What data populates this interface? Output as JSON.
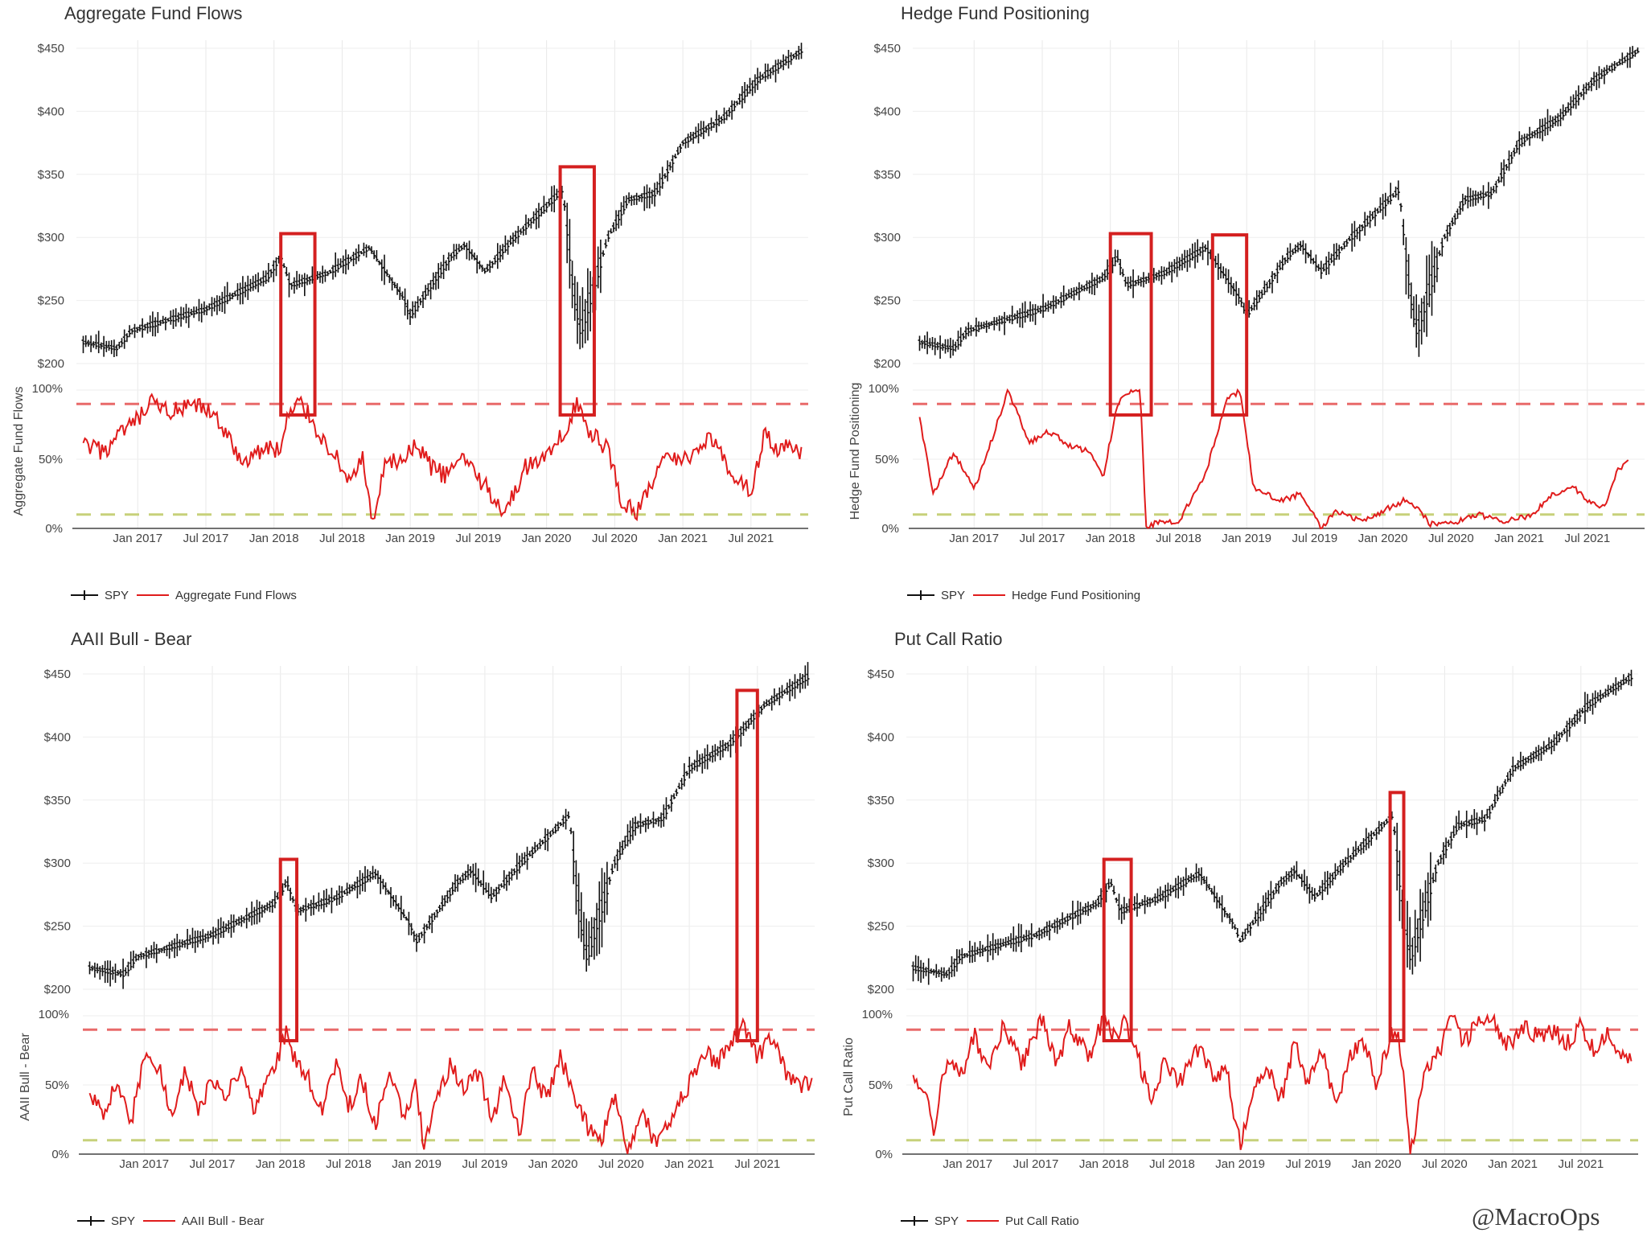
{
  "watermark": "@MacroOps",
  "chart_data": [
    {
      "type": "line",
      "title": "Aggregate Fund Flows",
      "price_series_name": "SPY",
      "indicator_series_name": "Aggregate Fund Flows",
      "indicator_ylabel": "Aggregate Fund Flows",
      "x_ticks": [
        "Jan 2017",
        "Jul 2017",
        "Jan 2018",
        "Jul 2018",
        "Jan 2019",
        "Jul 2019",
        "Jan 2020",
        "Jul 2020",
        "Jan 2021",
        "Jul 2021"
      ],
      "price_yticks": [
        "$200",
        "$250",
        "$300",
        "$350",
        "$400",
        "$450"
      ],
      "price_ylim": [
        200,
        450
      ],
      "indicator_yticks": [
        "0%",
        "50%",
        "100%"
      ],
      "indicator_ylim": [
        0,
        100
      ],
      "upper_threshold": 90,
      "lower_threshold": 10,
      "indicator_points": [
        [
          2016.6,
          60
        ],
        [
          2016.75,
          55
        ],
        [
          2016.9,
          70
        ],
        [
          2017.0,
          78
        ],
        [
          2017.1,
          90
        ],
        [
          2017.25,
          84
        ],
        [
          2017.45,
          88
        ],
        [
          2017.6,
          78
        ],
        [
          2017.75,
          48
        ],
        [
          2017.95,
          58
        ],
        [
          2018.05,
          57
        ],
        [
          2018.1,
          80
        ],
        [
          2018.2,
          92
        ],
        [
          2018.32,
          70
        ],
        [
          2018.45,
          52
        ],
        [
          2018.55,
          35
        ],
        [
          2018.65,
          50
        ],
        [
          2018.72,
          2
        ],
        [
          2018.82,
          46
        ],
        [
          2018.95,
          50
        ],
        [
          2019.05,
          60
        ],
        [
          2019.15,
          45
        ],
        [
          2019.25,
          38
        ],
        [
          2019.4,
          52
        ],
        [
          2019.55,
          30
        ],
        [
          2019.7,
          12
        ],
        [
          2019.85,
          45
        ],
        [
          2020.05,
          55
        ],
        [
          2020.15,
          75
        ],
        [
          2020.22,
          92
        ],
        [
          2020.3,
          70
        ],
        [
          2020.45,
          58
        ],
        [
          2020.55,
          20
        ],
        [
          2020.65,
          10
        ],
        [
          2020.85,
          48
        ],
        [
          2021.05,
          52
        ],
        [
          2021.2,
          68
        ],
        [
          2021.35,
          40
        ],
        [
          2021.5,
          28
        ],
        [
          2021.6,
          68
        ],
        [
          2021.7,
          55
        ],
        [
          2021.8,
          60
        ],
        [
          2021.87,
          52
        ]
      ],
      "highlights": [
        [
          2018.05,
          2018.3
        ],
        [
          2020.1,
          2020.35
        ]
      ]
    },
    {
      "type": "line",
      "title": "Hedge Fund Positioning",
      "price_series_name": "SPY",
      "indicator_series_name": "Hedge Fund Positioning",
      "indicator_ylabel": "Hedge Fund Positioning",
      "x_ticks": [
        "Jan 2017",
        "Jul 2017",
        "Jan 2018",
        "Jul 2018",
        "Jan 2019",
        "Jul 2019",
        "Jan 2020",
        "Jul 2020",
        "Jan 2021",
        "Jul 2021"
      ],
      "price_yticks": [
        "$200",
        "$250",
        "$300",
        "$350",
        "$400",
        "$450"
      ],
      "price_ylim": [
        200,
        450
      ],
      "indicator_yticks": [
        "0%",
        "50%",
        "100%"
      ],
      "indicator_ylim": [
        0,
        100
      ],
      "upper_threshold": 90,
      "lower_threshold": 10,
      "indicator_points": [
        [
          2016.6,
          80
        ],
        [
          2016.7,
          25
        ],
        [
          2016.85,
          55
        ],
        [
          2017.0,
          28
        ],
        [
          2017.1,
          55
        ],
        [
          2017.25,
          100
        ],
        [
          2017.4,
          62
        ],
        [
          2017.55,
          70
        ],
        [
          2017.7,
          60
        ],
        [
          2017.85,
          55
        ],
        [
          2017.95,
          38
        ],
        [
          2018.05,
          90
        ],
        [
          2018.15,
          100
        ],
        [
          2018.22,
          100
        ],
        [
          2018.26,
          0
        ],
        [
          2018.35,
          5
        ],
        [
          2018.5,
          5
        ],
        [
          2018.7,
          40
        ],
        [
          2018.85,
          92
        ],
        [
          2018.95,
          100
        ],
        [
          2019.05,
          30
        ],
        [
          2019.25,
          20
        ],
        [
          2019.4,
          25
        ],
        [
          2019.55,
          0
        ],
        [
          2019.65,
          12
        ],
        [
          2019.85,
          5
        ],
        [
          2020.15,
          20
        ],
        [
          2020.25,
          15
        ],
        [
          2020.35,
          3
        ],
        [
          2020.55,
          5
        ],
        [
          2020.7,
          10
        ],
        [
          2020.9,
          5
        ],
        [
          2021.1,
          10
        ],
        [
          2021.25,
          25
        ],
        [
          2021.4,
          30
        ],
        [
          2021.5,
          20
        ],
        [
          2021.62,
          15
        ],
        [
          2021.72,
          42
        ],
        [
          2021.8,
          48
        ]
      ],
      "highlights": [
        [
          2018.0,
          2018.3
        ],
        [
          2018.75,
          2019.0
        ]
      ]
    },
    {
      "type": "line",
      "title": "AAII Bull - Bear",
      "price_series_name": "SPY",
      "indicator_series_name": "AAII Bull - Bear",
      "indicator_ylabel": "AAII Bull - Bear",
      "x_ticks": [
        "Jan 2017",
        "Jul 2017",
        "Jan 2018",
        "Jul 2018",
        "Jan 2019",
        "Jul 2019",
        "Jan 2020",
        "Jul 2020",
        "Jan 2021",
        "Jul 2021"
      ],
      "price_yticks": [
        "$200",
        "$250",
        "$300",
        "$350",
        "$400",
        "$450"
      ],
      "price_ylim": [
        200,
        450
      ],
      "indicator_yticks": [
        "0%",
        "50%",
        "100%"
      ],
      "indicator_ylim": [
        0,
        100
      ],
      "upper_threshold": 90,
      "lower_threshold": 10,
      "indicator_points": [
        [
          2016.6,
          42
        ],
        [
          2016.7,
          28
        ],
        [
          2016.8,
          55
        ],
        [
          2016.9,
          22
        ],
        [
          2017.0,
          70
        ],
        [
          2017.1,
          65
        ],
        [
          2017.2,
          28
        ],
        [
          2017.3,
          60
        ],
        [
          2017.4,
          30
        ],
        [
          2017.5,
          55
        ],
        [
          2017.6,
          40
        ],
        [
          2017.7,
          62
        ],
        [
          2017.8,
          32
        ],
        [
          2017.9,
          55
        ],
        [
          2018.0,
          75
        ],
        [
          2018.05,
          90
        ],
        [
          2018.1,
          70
        ],
        [
          2018.2,
          55
        ],
        [
          2018.3,
          30
        ],
        [
          2018.4,
          65
        ],
        [
          2018.5,
          35
        ],
        [
          2018.6,
          55
        ],
        [
          2018.7,
          20
        ],
        [
          2018.8,
          60
        ],
        [
          2018.9,
          30
        ],
        [
          2019.0,
          50
        ],
        [
          2019.05,
          5
        ],
        [
          2019.15,
          40
        ],
        [
          2019.25,
          65
        ],
        [
          2019.35,
          45
        ],
        [
          2019.45,
          60
        ],
        [
          2019.55,
          25
        ],
        [
          2019.65,
          55
        ],
        [
          2019.75,
          15
        ],
        [
          2019.85,
          60
        ],
        [
          2019.95,
          40
        ],
        [
          2020.05,
          70
        ],
        [
          2020.15,
          45
        ],
        [
          2020.25,
          20
        ],
        [
          2020.35,
          10
        ],
        [
          2020.45,
          40
        ],
        [
          2020.55,
          5
        ],
        [
          2020.65,
          30
        ],
        [
          2020.75,
          8
        ],
        [
          2020.85,
          25
        ],
        [
          2021.0,
          50
        ],
        [
          2021.1,
          75
        ],
        [
          2021.2,
          65
        ],
        [
          2021.3,
          80
        ],
        [
          2021.4,
          92
        ],
        [
          2021.5,
          70
        ],
        [
          2021.6,
          85
        ],
        [
          2021.7,
          60
        ],
        [
          2021.8,
          50
        ],
        [
          2021.9,
          52
        ]
      ],
      "highlights": [
        [
          2018.0,
          2018.12
        ],
        [
          2021.35,
          2021.5
        ]
      ]
    },
    {
      "type": "line",
      "title": "Put Call Ratio",
      "price_series_name": "SPY",
      "indicator_series_name": "Put Call Ratio",
      "indicator_ylabel": "Put Call Ratio",
      "x_ticks": [
        "Jan 2017",
        "Jul 2017",
        "Jan 2018",
        "Jul 2018",
        "Jan 2019",
        "Jul 2019",
        "Jan 2020",
        "Jul 2020",
        "Jan 2021",
        "Jul 2021"
      ],
      "price_yticks": [
        "$200",
        "$250",
        "$300",
        "$350",
        "$400",
        "$450"
      ],
      "price_ylim": [
        200,
        450
      ],
      "indicator_yticks": [
        "0%",
        "50%",
        "100%"
      ],
      "indicator_ylim": [
        0,
        100
      ],
      "upper_threshold": 90,
      "lower_threshold": 10,
      "indicator_points": [
        [
          2016.6,
          55
        ],
        [
          2016.7,
          50
        ],
        [
          2016.75,
          15
        ],
        [
          2016.85,
          72
        ],
        [
          2016.95,
          58
        ],
        [
          2017.05,
          85
        ],
        [
          2017.15,
          62
        ],
        [
          2017.25,
          90
        ],
        [
          2017.4,
          65
        ],
        [
          2017.55,
          100
        ],
        [
          2017.65,
          65
        ],
        [
          2017.75,
          92
        ],
        [
          2017.9,
          70
        ],
        [
          2018.0,
          100
        ],
        [
          2018.1,
          80
        ],
        [
          2018.15,
          95
        ],
        [
          2018.25,
          70
        ],
        [
          2018.35,
          35
        ],
        [
          2018.45,
          70
        ],
        [
          2018.55,
          50
        ],
        [
          2018.7,
          78
        ],
        [
          2018.8,
          55
        ],
        [
          2018.9,
          60
        ],
        [
          2019.0,
          5
        ],
        [
          2019.1,
          50
        ],
        [
          2019.2,
          62
        ],
        [
          2019.3,
          40
        ],
        [
          2019.4,
          80
        ],
        [
          2019.5,
          50
        ],
        [
          2019.6,
          78
        ],
        [
          2019.7,
          35
        ],
        [
          2019.8,
          68
        ],
        [
          2019.9,
          85
        ],
        [
          2020.0,
          50
        ],
        [
          2020.1,
          85
        ],
        [
          2020.15,
          90
        ],
        [
          2020.2,
          60
        ],
        [
          2020.25,
          0
        ],
        [
          2020.35,
          55
        ],
        [
          2020.45,
          72
        ],
        [
          2020.55,
          100
        ],
        [
          2020.65,
          80
        ],
        [
          2020.75,
          100
        ],
        [
          2020.85,
          100
        ],
        [
          2020.95,
          80
        ],
        [
          2021.1,
          90
        ],
        [
          2021.2,
          85
        ],
        [
          2021.3,
          88
        ],
        [
          2021.4,
          80
        ],
        [
          2021.5,
          95
        ],
        [
          2021.6,
          75
        ],
        [
          2021.7,
          88
        ],
        [
          2021.8,
          70
        ],
        [
          2021.87,
          66
        ]
      ],
      "highlights": [
        [
          2018.0,
          2018.2
        ],
        [
          2020.1,
          2020.2
        ]
      ]
    }
  ]
}
